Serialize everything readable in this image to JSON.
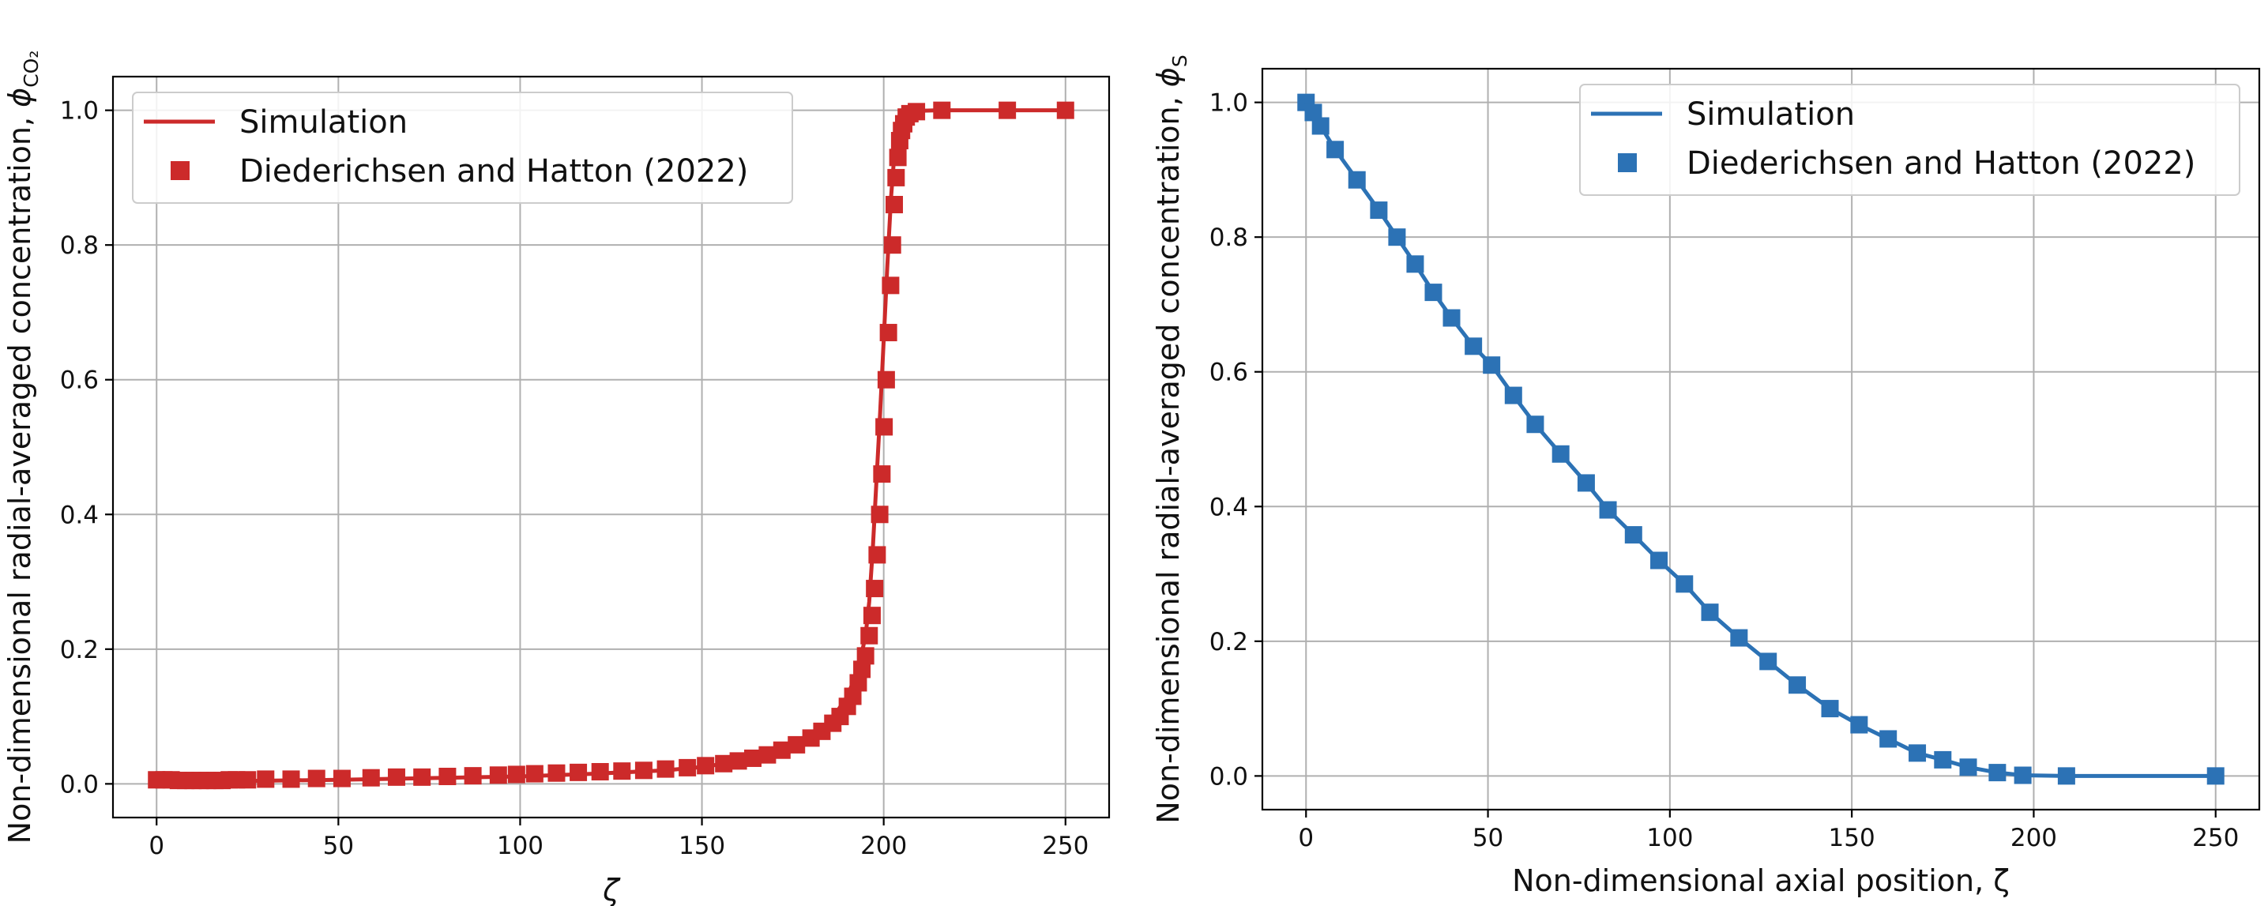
{
  "chart_data": [
    {
      "type": "line",
      "panel": "left",
      "xlabel": "ζ",
      "ylabel_main": "Non-dimensional radial-averaged concentration, ",
      "ylabel_symbol": "ϕ",
      "ylabel_subscript": "CO₂",
      "xlim": [
        -12,
        262
      ],
      "ylim": [
        -0.05,
        1.05
      ],
      "xticks": [
        0,
        50,
        100,
        150,
        200,
        250
      ],
      "yticks": [
        0.0,
        0.2,
        0.4,
        0.6,
        0.8,
        1.0
      ],
      "grid": true,
      "legend_position": "upper left",
      "color": "#cc2a2a",
      "series": [
        {
          "name": "Simulation",
          "kind": "line",
          "x": [
            0,
            20,
            50,
            100,
            120,
            140,
            150,
            160,
            170,
            180,
            185,
            190,
            193,
            195,
            196,
            197,
            198,
            199,
            200,
            201,
            202,
            203,
            204,
            205,
            206,
            208,
            215,
            250
          ],
          "y": [
            0.004,
            0.004,
            0.006,
            0.011,
            0.015,
            0.02,
            0.025,
            0.033,
            0.046,
            0.07,
            0.09,
            0.13,
            0.17,
            0.22,
            0.27,
            0.35,
            0.45,
            0.55,
            0.66,
            0.77,
            0.87,
            0.94,
            0.975,
            0.99,
            0.997,
            0.999,
            1.0,
            1.0
          ]
        },
        {
          "name": "Diederichsen and Hatton (2022)",
          "kind": "markers",
          "x": [
            0,
            2,
            4,
            6,
            8,
            10,
            12,
            14,
            16,
            18,
            20,
            22,
            25,
            30,
            37,
            44,
            51,
            59,
            66,
            73,
            80,
            87,
            94,
            99,
            104,
            110,
            116,
            122,
            128,
            134,
            140,
            146,
            151,
            156,
            160,
            164,
            168,
            172,
            176,
            180,
            183,
            186,
            188,
            190,
            191.5,
            193,
            194,
            195,
            196,
            196.8,
            197.5,
            198.2,
            198.9,
            199.5,
            200.1,
            200.7,
            201.3,
            201.9,
            202.4,
            202.9,
            203.4,
            203.9,
            204.4,
            204.9,
            205.5,
            206.2,
            207.2,
            209,
            216,
            234,
            250
          ],
          "y": [
            0.006,
            0.006,
            0.006,
            0.005,
            0.005,
            0.005,
            0.005,
            0.005,
            0.005,
            0.005,
            0.006,
            0.006,
            0.006,
            0.007,
            0.007,
            0.008,
            0.008,
            0.009,
            0.01,
            0.01,
            0.011,
            0.012,
            0.013,
            0.014,
            0.015,
            0.016,
            0.017,
            0.018,
            0.019,
            0.02,
            0.022,
            0.024,
            0.027,
            0.03,
            0.034,
            0.038,
            0.043,
            0.05,
            0.058,
            0.068,
            0.078,
            0.09,
            0.1,
            0.115,
            0.13,
            0.15,
            0.17,
            0.19,
            0.22,
            0.25,
            0.29,
            0.34,
            0.4,
            0.46,
            0.53,
            0.6,
            0.67,
            0.74,
            0.8,
            0.86,
            0.9,
            0.93,
            0.955,
            0.97,
            0.98,
            0.99,
            0.995,
            0.998,
            1.0,
            1.0,
            1.0
          ]
        }
      ]
    },
    {
      "type": "line",
      "panel": "right",
      "xlabel": "Non-dimensional axial position, ζ",
      "ylabel_main": "Non-dimensional radial-averaged concentration, ",
      "ylabel_symbol": "ϕ",
      "ylabel_subscript": "S",
      "xlim": [
        -12,
        262
      ],
      "ylim": [
        -0.05,
        1.05
      ],
      "xticks": [
        0,
        50,
        100,
        150,
        200,
        250
      ],
      "yticks": [
        0.0,
        0.2,
        0.4,
        0.6,
        0.8,
        1.0
      ],
      "grid": true,
      "legend_position": "upper right",
      "color": "#2c72b5",
      "series": [
        {
          "name": "Simulation",
          "kind": "line",
          "x": [
            0,
            2,
            4,
            8,
            14,
            20,
            25,
            30,
            35,
            40,
            46,
            51,
            57,
            63,
            70,
            77,
            83,
            90,
            97,
            104,
            111,
            119,
            127,
            135,
            144,
            152,
            160,
            168,
            175,
            182,
            190,
            197,
            209,
            250
          ],
          "y": [
            1.0,
            0.985,
            0.965,
            0.93,
            0.885,
            0.84,
            0.8,
            0.76,
            0.718,
            0.68,
            0.638,
            0.61,
            0.565,
            0.522,
            0.478,
            0.435,
            0.395,
            0.358,
            0.32,
            0.285,
            0.243,
            0.205,
            0.17,
            0.135,
            0.1,
            0.076,
            0.055,
            0.034,
            0.024,
            0.013,
            0.005,
            0.001,
            0.0,
            0.0
          ]
        },
        {
          "name": "Diederichsen and Hatton (2022)",
          "kind": "markers",
          "x": [
            0,
            2,
            4,
            8,
            14,
            20,
            25,
            30,
            35,
            40,
            46,
            51,
            57,
            63,
            70,
            77,
            83,
            90,
            97,
            104,
            111,
            119,
            127,
            135,
            144,
            152,
            160,
            168,
            175,
            182,
            190,
            197,
            209,
            250
          ],
          "y": [
            1.0,
            0.985,
            0.965,
            0.93,
            0.885,
            0.84,
            0.8,
            0.76,
            0.718,
            0.68,
            0.638,
            0.61,
            0.565,
            0.522,
            0.478,
            0.435,
            0.395,
            0.358,
            0.32,
            0.285,
            0.243,
            0.205,
            0.17,
            0.135,
            0.1,
            0.076,
            0.055,
            0.034,
            0.024,
            0.013,
            0.005,
            0.001,
            0.0,
            0.0
          ]
        }
      ]
    }
  ]
}
